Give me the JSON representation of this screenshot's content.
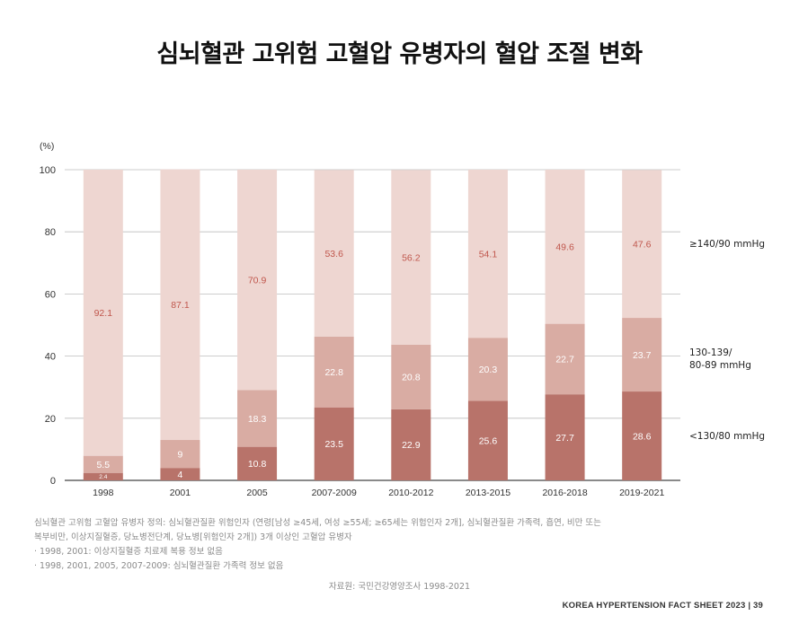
{
  "title": "심뇌혈관 고위험 고혈압 유병자의 혈압 조절 변화",
  "chart_data": {
    "type": "bar",
    "stacked": true,
    "unit_label": "(%)",
    "ylim": [
      0,
      100
    ],
    "yticks": [
      0,
      20,
      40,
      60,
      80,
      100
    ],
    "categories": [
      "1998",
      "2001",
      "2005",
      "2007-2009",
      "2010-2012",
      "2013-2015",
      "2016-2018",
      "2019-2021"
    ],
    "series": [
      {
        "name": "<130/80 mmHg",
        "values": [
          2.4,
          4.0,
          10.8,
          23.5,
          22.9,
          25.6,
          27.7,
          28.6
        ],
        "color": "#b8736a"
      },
      {
        "name": "130-139/ 80-89 mmHg",
        "values": [
          5.5,
          9.0,
          18.3,
          22.8,
          20.8,
          20.3,
          22.7,
          23.7
        ],
        "color": "#d9aca3"
      },
      {
        "name": "≥140/90 mmHg",
        "values": [
          92.1,
          87.1,
          70.9,
          53.6,
          56.2,
          54.1,
          49.6,
          47.6
        ],
        "color": "#eed6d1"
      }
    ],
    "legend_position": "right",
    "grid": true
  },
  "notes": [
    "심뇌혈관 고위험 고혈압 유병자 정의: 심뇌혈관질환 위험인자 (연령[남성 ≥45세, 여성 ≥55세; ≥65세는 위험인자 2개], 심뇌혈관질환 가족력, 흡연, 비만 또는",
    "복부비만, 이상지질혈증, 당뇨병전단계, 당뇨병[위험인자 2개]) 3개 이상인 고혈압 유병자",
    "· 1998, 2001: 이상지질혈증 치료제 복용 정보 없음",
    "· 1998, 2001, 2005, 2007-2009: 심뇌혈관질환 가족력 정보 없음"
  ],
  "source": "자료원: 국민건강영양조사 1998-2021",
  "footer": "KOREA HYPERTENSION FACT SHEET 2023 | 39"
}
